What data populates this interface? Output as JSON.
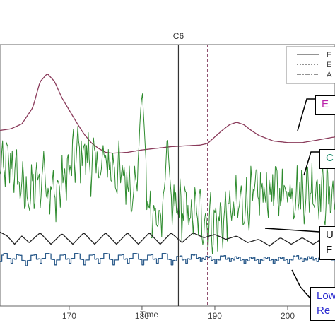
{
  "chart_data": {
    "type": "line",
    "xlabel": "Time",
    "ylabel": "",
    "xlim": [
      160.5,
      206.5
    ],
    "x_ticks": [
      170,
      180,
      190,
      200
    ],
    "grid": false,
    "legend_position": "top-right",
    "legend_entries": [
      "E",
      "E",
      "A"
    ],
    "annotations": [
      {
        "label": "C6",
        "x": 185.0,
        "style": "solid"
      },
      {
        "label": "",
        "x": 189.0,
        "style": "dashed"
      }
    ],
    "callouts": [
      {
        "text_lines": [
          "E"
        ],
        "color": "#bb22aa"
      },
      {
        "text_lines": [
          "C"
        ],
        "color": "#1a8a6a"
      },
      {
        "text_lines": [
          "U",
          "F"
        ],
        "color": "#111111"
      },
      {
        "text_lines": [
          "Low",
          "Re"
        ],
        "color": "#2b2bd0"
      }
    ],
    "series": [
      {
        "color": "#8a3a5a",
        "style": "solid",
        "x": [
          160.5,
          162,
          163.5,
          165,
          166,
          167,
          168,
          169,
          170,
          171,
          172,
          173,
          174,
          175,
          176,
          178,
          180,
          182,
          184,
          186,
          188,
          189,
          190,
          191,
          192,
          193,
          194,
          195,
          196,
          198,
          200,
          202,
          204,
          206.5
        ],
        "values": [
          0.7,
          0.72,
          0.78,
          0.98,
          1.3,
          1.4,
          1.3,
          1.1,
          0.95,
          0.8,
          0.66,
          0.55,
          0.48,
          0.43,
          0.42,
          0.43,
          0.46,
          0.48,
          0.5,
          0.51,
          0.52,
          0.54,
          0.62,
          0.7,
          0.77,
          0.8,
          0.77,
          0.7,
          0.64,
          0.57,
          0.55,
          0.55,
          0.58,
          0.62
        ]
      },
      {
        "color": "#2e8b2e",
        "style": "solid",
        "x": [
          160.5,
          162,
          163,
          164,
          165,
          166,
          167,
          168,
          169,
          170,
          171,
          172,
          173,
          174,
          175,
          176,
          177,
          178,
          179,
          179.5,
          180,
          181,
          182,
          183,
          184,
          185,
          186,
          187,
          188,
          189,
          190,
          191,
          192,
          193,
          194,
          195,
          196,
          197,
          198,
          199,
          200,
          201,
          202,
          203,
          204,
          205,
          206.5
        ],
        "values": [
          0.2,
          0.3,
          0.1,
          -0.1,
          -0.05,
          0.1,
          0.0,
          -0.1,
          0.05,
          0.2,
          0.4,
          0.45,
          0.3,
          0.25,
          0.3,
          0.25,
          0.15,
          0.1,
          0.0,
          0.2,
          -0.3,
          -0.2,
          -0.4,
          -0.35,
          -0.3,
          -0.25,
          -0.3,
          -0.35,
          -0.35,
          -0.4,
          -0.45,
          -0.4,
          -0.3,
          -0.25,
          -0.2,
          -0.15,
          -0.1,
          -0.05,
          -0.05,
          -0.05,
          0.0,
          -0.05,
          -0.05,
          0.0,
          0.0,
          -0.1,
          -0.1
        ],
        "spikes": [
          {
            "x": 180.0,
            "value": 1.2
          },
          {
            "x": 183.5,
            "value": 0.65
          },
          {
            "x": 166.5,
            "value": 0.45
          }
        ]
      },
      {
        "color": "#222222",
        "style": "solid",
        "x": [
          160.5,
          161.5,
          162.5,
          163.5,
          164.5,
          166,
          167.5,
          169,
          170.5,
          172,
          173.5,
          175,
          176.5,
          178,
          179.5,
          181,
          182.5,
          184,
          185.5,
          187,
          188.5,
          190,
          191.5,
          193,
          194.5,
          196,
          197.5,
          199,
          200.5,
          202,
          203.5,
          205,
          206.5
        ],
        "values": [
          -0.55,
          -0.6,
          -0.7,
          -0.6,
          -0.68,
          -0.56,
          -0.7,
          -0.57,
          -0.7,
          -0.56,
          -0.7,
          -0.56,
          -0.7,
          -0.56,
          -0.7,
          -0.56,
          -0.7,
          -0.56,
          -0.68,
          -0.56,
          -0.62,
          -0.58,
          -0.64,
          -0.6,
          -0.68,
          -0.64,
          -0.72,
          -0.62,
          -0.7,
          -0.62,
          -0.7,
          -0.62,
          -0.7
        ]
      },
      {
        "color": "#2a5a8a",
        "style": "step",
        "x": [
          160.5,
          161,
          162,
          163,
          164,
          165,
          166,
          167,
          168,
          169,
          170,
          171,
          172,
          173,
          174,
          175,
          176,
          177,
          178,
          179,
          180,
          181,
          182,
          183,
          184,
          185,
          186,
          187,
          188,
          189,
          190,
          191,
          192,
          193,
          194,
          195,
          196,
          197,
          198,
          199,
          200,
          201,
          202,
          203,
          204,
          205,
          206.5
        ],
        "values": [
          -0.9,
          -0.8,
          -0.92,
          -0.82,
          -0.95,
          -0.82,
          -0.92,
          -0.8,
          -0.94,
          -0.82,
          -0.92,
          -0.8,
          -0.94,
          -0.82,
          -0.92,
          -0.8,
          -0.94,
          -0.82,
          -0.92,
          -0.8,
          -0.94,
          -0.82,
          -0.92,
          -0.8,
          -0.94,
          -0.84,
          -0.92,
          -0.82,
          -0.9,
          -0.85,
          -0.92,
          -0.84,
          -0.9,
          -0.86,
          -0.92,
          -0.86,
          -0.92,
          -0.86,
          -0.92,
          -0.86,
          -0.92,
          -0.84,
          -0.9,
          -0.86,
          -0.9,
          -0.84,
          -0.9
        ]
      }
    ]
  }
}
